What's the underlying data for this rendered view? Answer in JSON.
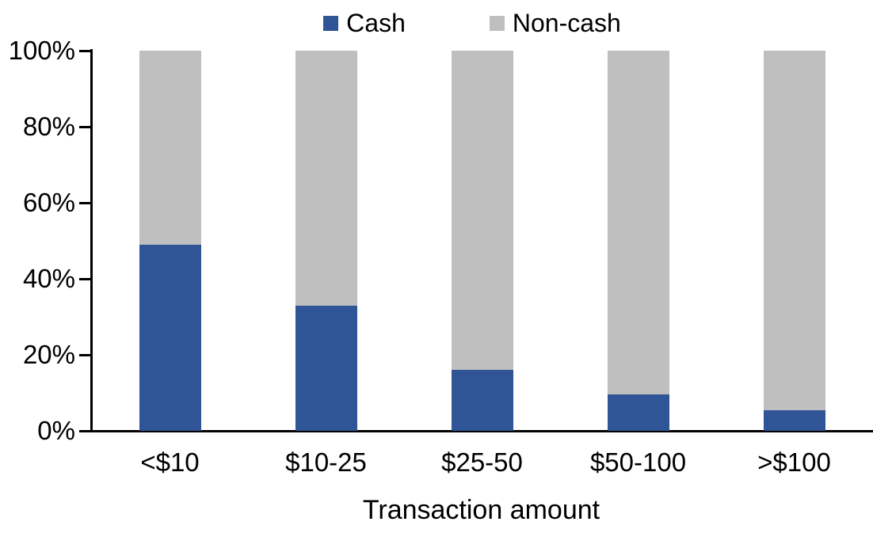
{
  "chart_data": {
    "type": "bar",
    "stacked": true,
    "percent_stacked": true,
    "title": "",
    "xlabel": "Transaction amount",
    "ylabel": "",
    "categories": [
      "<$10",
      "$10-25",
      "$25-50",
      "$50-100",
      ">$100"
    ],
    "series": [
      {
        "name": "Cash",
        "color": "#2F5597",
        "values": [
          49,
          33,
          16,
          9.5,
          5.5
        ]
      },
      {
        "name": "Non-cash",
        "color": "#BFBFBF",
        "values": [
          51,
          67,
          84,
          90.5,
          94.5
        ]
      }
    ],
    "ylim": [
      0,
      100
    ],
    "yticks": [
      "0%",
      "20%",
      "40%",
      "60%",
      "80%",
      "100%"
    ],
    "legend_position": "top-center",
    "grid": false,
    "axis_color": "#000000",
    "text_color": "#000000",
    "background_color": "#FFFFFF"
  }
}
